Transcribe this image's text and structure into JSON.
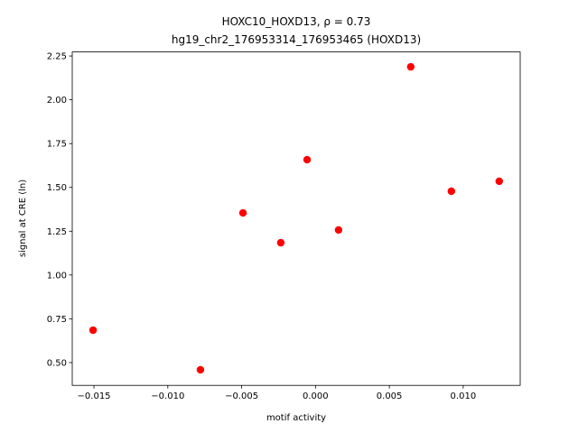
{
  "chart_data": {
    "type": "scatter",
    "title": "HOXC10_HOXD13, ρ = 0.73",
    "subtitle": "hg19_chr2_176953314_176953465 (HOXD13)",
    "x_label": "motif activity",
    "y_label": "signal at CRE (ln)",
    "color": "#ff0000",
    "x": [
      -0.01506,
      -0.00779,
      -0.00491,
      -0.00235,
      -0.00057,
      0.00156,
      0.00645,
      0.0092,
      0.01244
    ],
    "values": [
      0.685,
      0.459,
      1.354,
      1.184,
      1.658,
      1.257,
      2.188,
      1.478,
      1.535
    ],
    "xlim": [
      -0.01647,
      0.01386
    ],
    "ylim": [
      0.37,
      2.273
    ],
    "xticks": [
      {
        "value": -0.015,
        "label": "−0.015"
      },
      {
        "value": -0.01,
        "label": "−0.010"
      },
      {
        "value": -0.005,
        "label": "−0.005"
      },
      {
        "value": 0,
        "label": "0.000"
      },
      {
        "value": 0.005,
        "label": "0.005"
      },
      {
        "value": 0.01,
        "label": "0.010"
      }
    ],
    "yticks": [
      {
        "value": 0.5,
        "label": "0.50"
      },
      {
        "value": 0.75,
        "label": "0.75"
      },
      {
        "value": 1,
        "label": "1.00"
      },
      {
        "value": 1.25,
        "label": "1.25"
      },
      {
        "value": 1.5,
        "label": "1.50"
      },
      {
        "value": 1.75,
        "label": "1.75"
      },
      {
        "value": 2,
        "label": "2.00"
      },
      {
        "value": 2.25,
        "label": "2.25"
      }
    ]
  }
}
